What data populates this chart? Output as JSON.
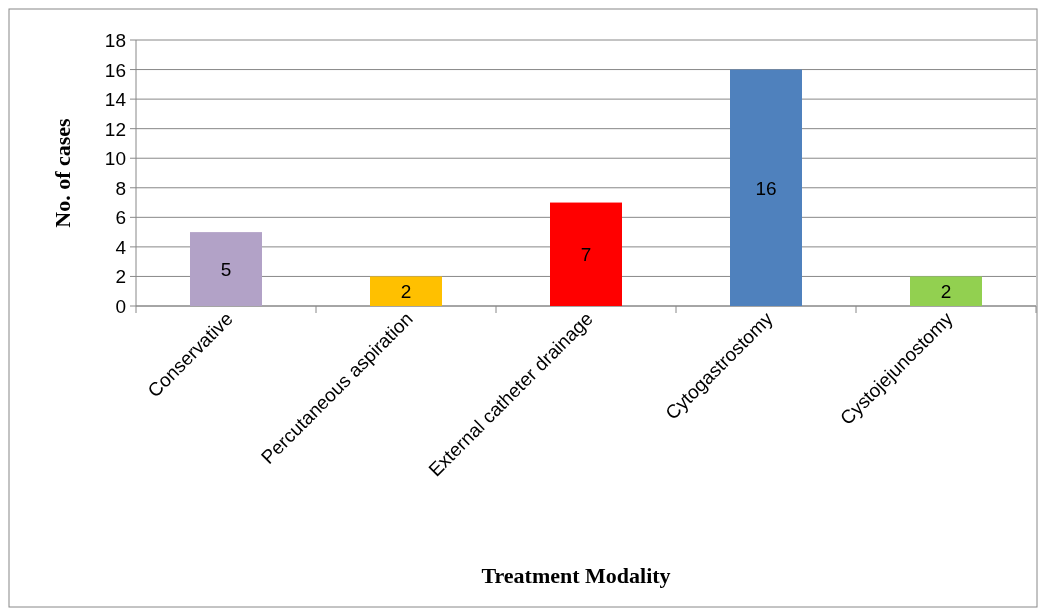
{
  "chart_data": {
    "type": "bar",
    "xlabel": "Treatment Modality",
    "ylabel": "No. of cases",
    "categories": [
      "Conservative",
      "Percutaneous aspiration",
      "External catheter drainage",
      "Cytogastrostomy",
      "Cystojejunostomy"
    ],
    "values": [
      5,
      2,
      7,
      16,
      2
    ],
    "colors": [
      "#b2a2c7",
      "#ffc000",
      "#ff0000",
      "#4f81bd",
      "#92d050"
    ],
    "ylim": [
      0,
      18
    ],
    "yticks": [
      0,
      2,
      4,
      6,
      8,
      10,
      12,
      14,
      16,
      18
    ],
    "grid": "y",
    "data_labels": true
  }
}
